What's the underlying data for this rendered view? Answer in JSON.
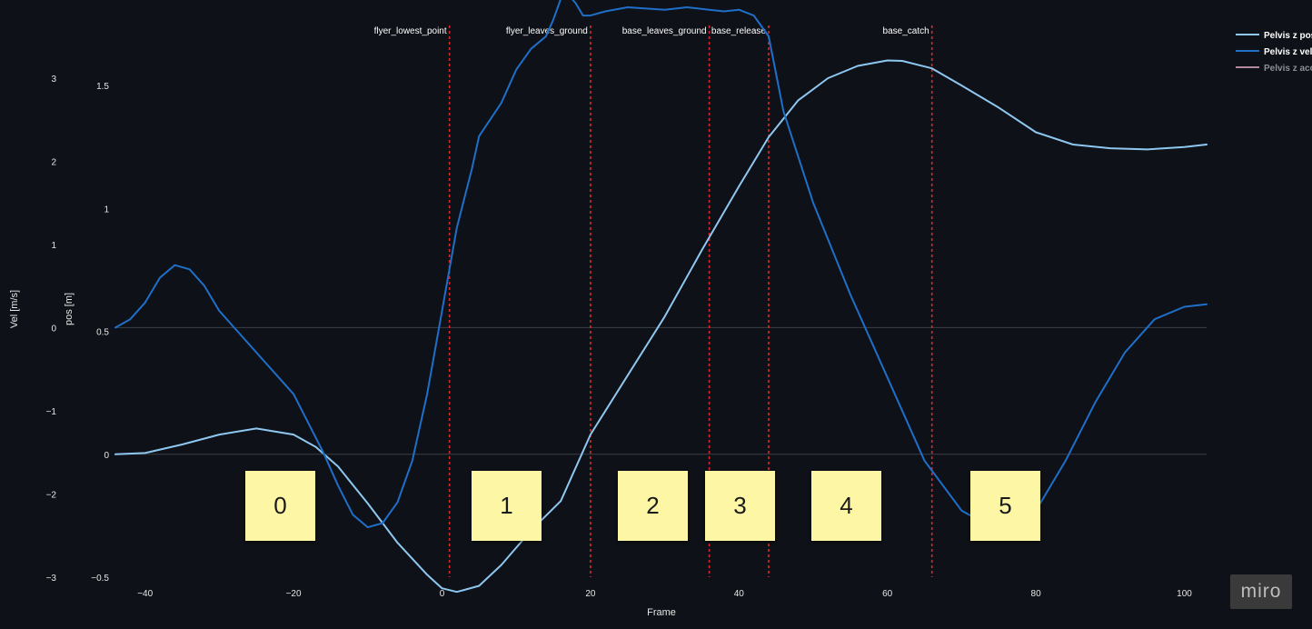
{
  "chart_data": {
    "type": "line",
    "xlabel": "Frame",
    "y_vel_label": "Vel [m/s]",
    "y_pos_label": "pos [m]",
    "xlim": [
      -44,
      103
    ],
    "x_ticks": [
      -40,
      -20,
      0,
      20,
      40,
      60,
      80,
      100
    ],
    "y_vel_ticks": [
      -3,
      -2,
      -1,
      0,
      1,
      2,
      3
    ],
    "y_vel_range": [
      -3.0,
      3.5
    ],
    "y_pos_ticks": [
      -0.5,
      0,
      0.5,
      1,
      1.5
    ],
    "y_pos_range": [
      -0.5,
      1.7
    ],
    "series": [
      {
        "name": "Pelvis z pos",
        "color": "#8ec7f0",
        "axis": "pos",
        "x": [
          -44,
          -40,
          -35,
          -30,
          -25,
          -20,
          -17,
          -14,
          -10,
          -6,
          -2,
          0,
          2,
          5,
          8,
          12,
          16,
          20,
          25,
          30,
          35,
          40,
          44,
          48,
          52,
          56,
          60,
          62,
          66,
          70,
          75,
          80,
          85,
          90,
          95,
          100,
          103
        ],
        "y": [
          0,
          0.005,
          0.04,
          0.08,
          0.105,
          0.08,
          0.03,
          -0.05,
          -0.2,
          -0.36,
          -0.49,
          -0.545,
          -0.56,
          -0.535,
          -0.45,
          -0.31,
          -0.19,
          0.08,
          0.32,
          0.56,
          0.83,
          1.09,
          1.29,
          1.44,
          1.53,
          1.58,
          1.602,
          1.6,
          1.57,
          1.5,
          1.41,
          1.31,
          1.26,
          1.245,
          1.24,
          1.25,
          1.26
        ]
      },
      {
        "name": "Pelvis z vel",
        "color": "#1f6fc9",
        "axis": "vel",
        "x": [
          -44,
          -42,
          -40,
          -38,
          -36,
          -34,
          -32,
          -30,
          -27,
          -24,
          -20,
          -16,
          -14,
          -12,
          -10,
          -8,
          -6,
          -4,
          -2,
          0,
          2,
          4,
          5,
          8,
          10,
          12,
          14,
          15,
          16,
          17,
          18,
          19,
          20,
          22,
          25,
          30,
          33,
          36,
          38,
          40,
          42,
          44,
          46,
          50,
          55,
          60,
          65,
          70,
          72,
          75,
          78,
          80,
          84,
          88,
          92,
          96,
          100,
          103
        ],
        "y": [
          0,
          0.1,
          0.3,
          0.6,
          0.75,
          0.7,
          0.5,
          0.2,
          -0.1,
          -0.4,
          -0.8,
          -1.5,
          -1.9,
          -2.25,
          -2.4,
          -2.35,
          -2.1,
          -1.6,
          -0.8,
          0.2,
          1.2,
          1.9,
          2.3,
          2.7,
          3.1,
          3.35,
          3.5,
          3.7,
          3.95,
          4.0,
          3.9,
          3.75,
          3.75,
          3.8,
          3.85,
          3.82,
          3.85,
          3.82,
          3.8,
          3.82,
          3.75,
          3.5,
          2.6,
          1.5,
          0.4,
          -0.6,
          -1.6,
          -2.2,
          -2.3,
          -2.35,
          -2.3,
          -2.2,
          -1.6,
          -0.9,
          -0.3,
          0.1,
          0.25,
          0.28
        ]
      },
      {
        "name": "Pelvis z acc",
        "color": "#b2899a",
        "axis": "vel",
        "visible": false,
        "x": [],
        "y": []
      }
    ],
    "events": [
      {
        "label": "flyer_lowest_point",
        "frame": 1
      },
      {
        "label": "flyer_leaves_ground",
        "frame": 20
      },
      {
        "label": "base_leaves_ground",
        "frame": 36
      },
      {
        "label": "base_release",
        "frame": 44
      },
      {
        "label": "base_catch",
        "frame": 66
      }
    ],
    "legend_placement": "top-right",
    "grid": "horizontal zero lines only"
  },
  "sticky_notes": [
    {
      "label": "0"
    },
    {
      "label": "1"
    },
    {
      "label": "2"
    },
    {
      "label": "3"
    },
    {
      "label": "4"
    },
    {
      "label": "5"
    }
  ],
  "badge": "miro"
}
